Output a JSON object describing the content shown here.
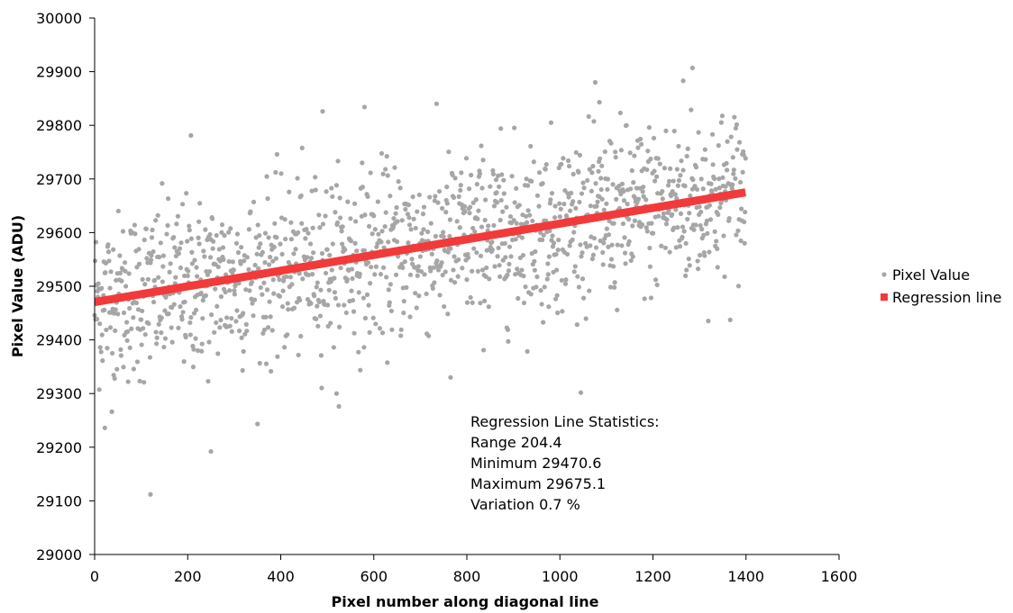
{
  "chart_data": {
    "type": "scatter",
    "xlabel": "Pixel number along diagonal line",
    "ylabel": "Pixel Value (ADU)",
    "xlim": [
      0,
      1600
    ],
    "ylim": [
      29000,
      30000
    ],
    "xticks": [
      0,
      200,
      400,
      600,
      800,
      1000,
      1200,
      1400,
      1600
    ],
    "yticks": [
      29000,
      29100,
      29200,
      29300,
      29400,
      29500,
      29600,
      29700,
      29800,
      29900,
      30000
    ],
    "grid": false,
    "legend_position": "right",
    "series": [
      {
        "name": "Pixel Value",
        "kind": "scatter",
        "color": "#a6a6a6",
        "n_points": 1400,
        "x_range": [
          0,
          1399
        ],
        "trend_start": 29470.6,
        "trend_end": 29675.1,
        "scatter_std": 100,
        "notable_points": [
          {
            "x": 120,
            "y": 29112
          },
          {
            "x": 250,
            "y": 29192
          },
          {
            "x": 22,
            "y": 29236
          },
          {
            "x": 207,
            "y": 29781
          },
          {
            "x": 490,
            "y": 29826
          },
          {
            "x": 580,
            "y": 29834
          },
          {
            "x": 1085,
            "y": 29843
          },
          {
            "x": 1285,
            "y": 29907
          },
          {
            "x": 1265,
            "y": 29883
          },
          {
            "x": 765,
            "y": 29330
          },
          {
            "x": 520,
            "y": 29300
          }
        ]
      },
      {
        "name": "Regression line",
        "kind": "line",
        "color": "#f23a3a",
        "x": [
          0,
          1399
        ],
        "y": [
          29470.6,
          29675.1
        ]
      }
    ],
    "annotation": {
      "lines": [
        "Regression Line Statistics:",
        "Range 204.4",
        "Minimum 29470.6",
        "Maximum 29675.1",
        "Variation 0.7 %"
      ]
    }
  }
}
